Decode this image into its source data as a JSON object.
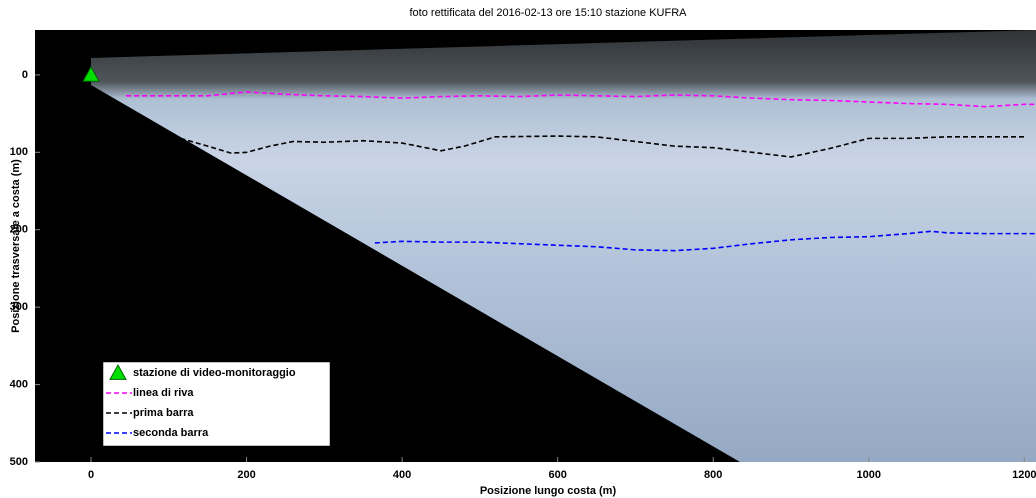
{
  "chart_data": {
    "type": "line",
    "title": "foto rettificata del 2016-02-13 ore 15:10 stazione KUFRA",
    "x_label": "Posizione lungo costa (m)",
    "y_label": "Posizione trasversale a costa (m)",
    "xlim": [
      -72,
      1215
    ],
    "xticks": [
      0,
      200,
      400,
      600,
      800,
      1000,
      1200
    ],
    "ylim": [
      -58,
      500
    ],
    "yticks": [
      0,
      100,
      200,
      300,
      400,
      500
    ],
    "y_reversed": true,
    "legend": "lower-left",
    "series": [
      {
        "name": "stazione di video-monitoraggio",
        "color": "#00e000",
        "marker": "triangle",
        "linestyle": "none",
        "x": [
          0
        ],
        "values": [
          0
        ]
      },
      {
        "name": "linea di riva",
        "color": "#ff00ff",
        "linestyle": "dashed",
        "x": [
          45,
          100,
          150,
          200,
          250,
          300,
          350,
          400,
          450,
          500,
          550,
          600,
          650,
          700,
          750,
          800,
          850,
          900,
          950,
          1000,
          1050,
          1100,
          1150,
          1200,
          1215
        ],
        "values": [
          27,
          27,
          27,
          22,
          25,
          27,
          28,
          30,
          28,
          27,
          28,
          26,
          27,
          28,
          26,
          27,
          30,
          32,
          33,
          35,
          37,
          38,
          41,
          38,
          38
        ]
      },
      {
        "name": "prima barra",
        "color": "#000000",
        "linestyle": "dashed",
        "x": [
          115,
          150,
          180,
          200,
          230,
          260,
          300,
          350,
          400,
          450,
          480,
          520,
          600,
          650,
          700,
          750,
          800,
          850,
          900,
          950,
          1000,
          1050,
          1100,
          1150,
          1200
        ],
        "values": [
          82,
          92,
          101,
          100,
          92,
          86,
          87,
          85,
          88,
          98,
          92,
          80,
          79,
          80,
          86,
          92,
          94,
          100,
          106,
          95,
          82,
          82,
          80,
          80,
          80
        ]
      },
      {
        "name": "seconda barra",
        "color": "#0000ff",
        "linestyle": "dashed",
        "x": [
          365,
          400,
          450,
          500,
          550,
          600,
          650,
          700,
          750,
          800,
          850,
          900,
          950,
          1000,
          1050,
          1080,
          1100,
          1150,
          1215
        ],
        "values": [
          217,
          215,
          216,
          216,
          218,
          220,
          222,
          226,
          227,
          224,
          218,
          213,
          210,
          209,
          205,
          202,
          204,
          205,
          205
        ]
      }
    ]
  }
}
